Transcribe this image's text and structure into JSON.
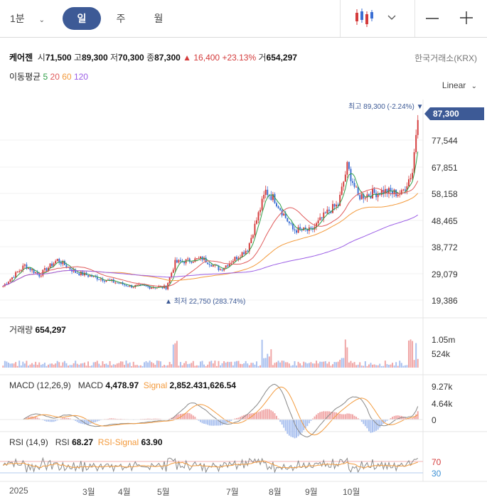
{
  "toolbar": {
    "interval": "1분",
    "tabs": [
      "일",
      "주",
      "월"
    ],
    "active_tab": "일"
  },
  "stock": {
    "name": "케어젠",
    "open_label": "시",
    "open": "71,500",
    "high_label": "고",
    "high": "89,300",
    "low_label": "저",
    "low": "70,300",
    "close_label": "종",
    "close": "87,300",
    "change": "▲ 16,400",
    "change_pct": "+23.13%",
    "volume_label": "거",
    "volume": "654,297",
    "exchange": "한국거래소(KRX)"
  },
  "ma": {
    "label": "이동평균",
    "periods": [
      "5",
      "20",
      "60",
      "120"
    ]
  },
  "scale": "Linear",
  "price_axis": [
    "77,544",
    "67,851",
    "58,158",
    "48,465",
    "38,772",
    "29,079",
    "19,386"
  ],
  "last_price": "87,300",
  "high_marker": "최고 89,300 (-2.24%) ▼",
  "low_marker": "▲ 최저 22,750 (283.74%)",
  "volume_panel": {
    "title": "거래량",
    "value": "654,297",
    "axis": [
      "1.05m",
      "524k"
    ]
  },
  "macd_panel": {
    "title": "MACD (12,26,9)",
    "macd_label": "MACD",
    "macd": "4,478.97",
    "signal_label": "Signal",
    "signal": "2,852.431,626.54",
    "axis": [
      "9.27k",
      "4.64k",
      "0"
    ]
  },
  "rsi_panel": {
    "title": "RSI (14,9)",
    "rsi_label": "RSI",
    "rsi": "68.27",
    "signal_label": "RSI-Signal",
    "signal": "63.90",
    "axis": [
      "70",
      "30"
    ]
  },
  "x_axis": [
    "2025",
    "3월",
    "4월",
    "5월",
    "7월",
    "8월",
    "9월",
    "10월"
  ],
  "colors": {
    "up": "#d43b3b",
    "down": "#3b6fd4",
    "ma5": "#2e9e47",
    "ma20": "#e05a5a",
    "ma60": "#f39a3c",
    "ma120": "#9b5de5",
    "accent": "#3d5a96"
  }
}
